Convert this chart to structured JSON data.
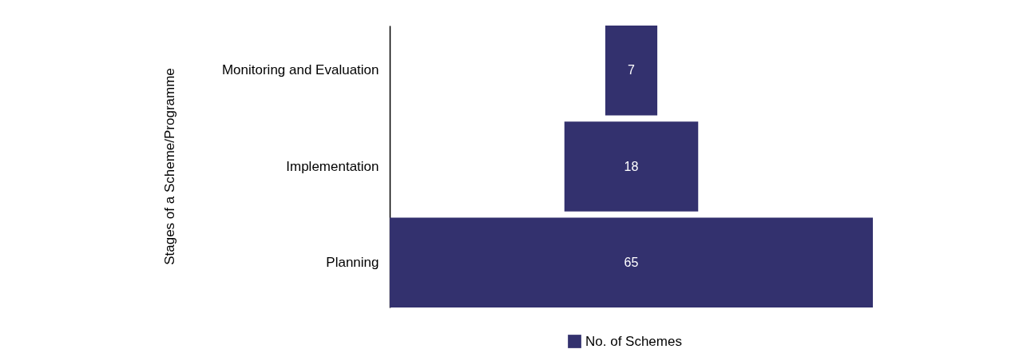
{
  "chart_data": {
    "type": "other",
    "ylabel": "Stages of a Scheme/Programme",
    "categories": [
      "Monitoring and Evaluation",
      "Implementation",
      "Planning"
    ],
    "series": [
      {
        "name": "No. of Schemes",
        "color": "#33316e",
        "values": [
          7,
          18,
          65
        ]
      }
    ],
    "data_labels": true,
    "legend": "bottom"
  }
}
